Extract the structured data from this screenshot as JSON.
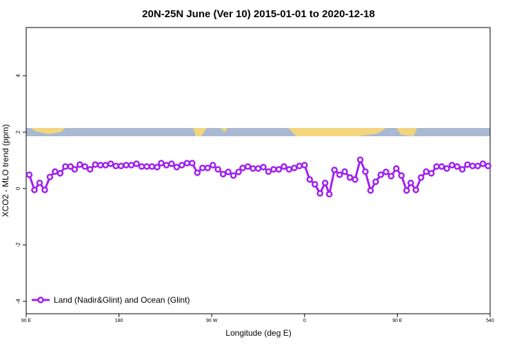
{
  "chart_data": {
    "type": "line",
    "title": "20N-25N June (Ver 10)   2015-01-01 to 2020-12-18",
    "x_label": "Longitude (deg E)",
    "y_label": "XCO2 - MLO trend (ppm)",
    "x": [
      93,
      98,
      103,
      108,
      113,
      118,
      123,
      128,
      133,
      137,
      142,
      147,
      152,
      157,
      162,
      167,
      172,
      177,
      182,
      187,
      192,
      197,
      202,
      207,
      212,
      217,
      221,
      226,
      231,
      236,
      241,
      246,
      251,
      256,
      261,
      266,
      271,
      276,
      281,
      286,
      291,
      296,
      300,
      305,
      310,
      315,
      320,
      325,
      330,
      335,
      340,
      345,
      350,
      355,
      360,
      365,
      370,
      375,
      380,
      384,
      389,
      394,
      399,
      404,
      409,
      414,
      419,
      424,
      429,
      434,
      439,
      444,
      449,
      454,
      459,
      463,
      468,
      473,
      478,
      483,
      488,
      493,
      498,
      503,
      508,
      513,
      518,
      523,
      528,
      533,
      538
    ],
    "series": [
      {
        "name": "Land (Nadir&Glint) and Ocean (Glint)",
        "color": "#a020f0",
        "values": [
          0.49,
          -0.05,
          0.2,
          -0.05,
          0.41,
          0.6,
          0.54,
          0.78,
          0.78,
          0.68,
          0.85,
          0.78,
          0.68,
          0.85,
          0.83,
          0.83,
          0.88,
          0.8,
          0.8,
          0.83,
          0.83,
          0.88,
          0.78,
          0.78,
          0.78,
          0.76,
          0.9,
          0.83,
          0.88,
          0.76,
          0.83,
          0.9,
          0.9,
          0.56,
          0.73,
          0.73,
          0.83,
          0.68,
          0.51,
          0.59,
          0.46,
          0.59,
          0.73,
          0.78,
          0.71,
          0.71,
          0.76,
          0.6,
          0.68,
          0.68,
          0.78,
          0.68,
          0.73,
          0.8,
          0.83,
          0.32,
          0.15,
          -0.17,
          0.2,
          -0.2,
          0.66,
          0.49,
          0.6,
          0.39,
          0.32,
          1.02,
          0.6,
          -0.07,
          0.24,
          0.49,
          0.59,
          0.44,
          0.71,
          0.46,
          -0.07,
          0.2,
          -0.05,
          0.39,
          0.6,
          0.54,
          0.78,
          0.78,
          0.71,
          0.83,
          0.78,
          0.68,
          0.85,
          0.8,
          0.8,
          0.88,
          0.8
        ]
      }
    ],
    "xlim": [
      90,
      540
    ],
    "ylim": [
      -4.44,
      5.71
    ],
    "xticks": [
      {
        "value": 90,
        "label": "90 E"
      },
      180,
      {
        "value": 270,
        "label": "90 W"
      },
      {
        "value": 360,
        "label": "0"
      },
      {
        "value": 450,
        "label": "90 E"
      },
      540
    ],
    "yticks": [
      -4,
      -2,
      0,
      2,
      4
    ],
    "legend": "bottom-left"
  }
}
